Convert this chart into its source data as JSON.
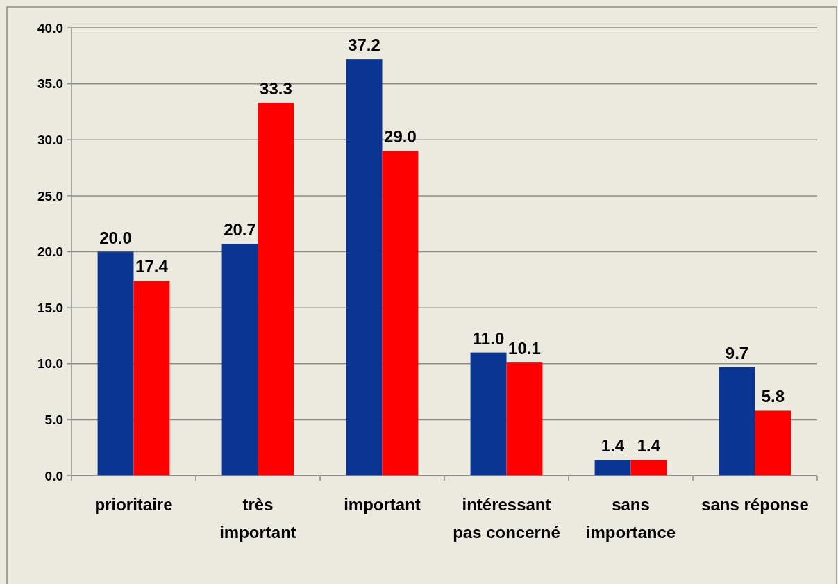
{
  "chart_data": {
    "type": "bar",
    "categories": [
      "prioritaire",
      "très important",
      "important",
      "intéressant pas concerné",
      "sans importance",
      "sans réponse"
    ],
    "series": [
      {
        "color": "#0a3592",
        "values": [
          20.0,
          20.7,
          37.2,
          11.0,
          1.4,
          9.7
        ],
        "value_labels": [
          "20.0",
          "20.7",
          "37.2",
          "11.0",
          "1.4",
          "9.7"
        ]
      },
      {
        "color": "#ff0000",
        "values": [
          17.4,
          33.3,
          29.0,
          10.1,
          1.4,
          5.8
        ],
        "value_labels": [
          "17.4",
          "33.3",
          "29.0",
          "10.1",
          "1.4",
          "5.8"
        ]
      }
    ],
    "ylim": [
      0,
      40
    ],
    "yticks": [
      {
        "value": 0,
        "label": "0.0"
      },
      {
        "value": 5,
        "label": "5.0"
      },
      {
        "value": 10,
        "label": "10.0"
      },
      {
        "value": 15,
        "label": "15.0"
      },
      {
        "value": 20,
        "label": "20.0"
      },
      {
        "value": 25,
        "label": "25.0"
      },
      {
        "value": 30,
        "label": "30.0"
      },
      {
        "value": 35,
        "label": "35.0"
      },
      {
        "value": 40,
        "label": "40.0"
      }
    ],
    "grid": "y"
  }
}
